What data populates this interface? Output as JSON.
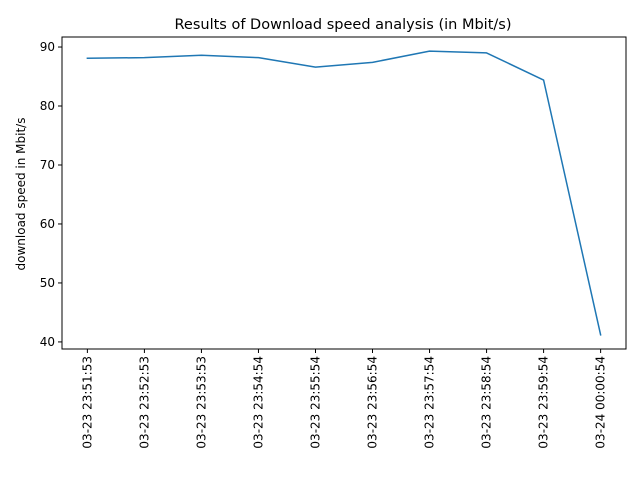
{
  "chart_data": {
    "type": "line",
    "title": "Results of Download speed analysis (in Mbit/s)",
    "xlabel": "",
    "ylabel": "download speed in Mbit/s",
    "categories": [
      "03-23 23:51:53",
      "03-23 23:52:53",
      "03-23 23:53:53",
      "03-23 23:54:54",
      "03-23 23:55:54",
      "03-23 23:56:54",
      "03-23 23:57:54",
      "03-23 23:58:54",
      "03-23 23:59:54",
      "03-24 00:00:54"
    ],
    "series": [
      {
        "values": [
          88.1,
          88.2,
          88.6,
          88.2,
          86.6,
          87.4,
          89.3,
          89.0,
          84.4,
          41.2
        ],
        "color": "#1f77b4"
      }
    ],
    "ylim": [
      38.8,
      91.7
    ],
    "yticks": [
      40,
      50,
      60,
      70,
      80,
      90
    ],
    "grid": false,
    "legend": "none"
  }
}
